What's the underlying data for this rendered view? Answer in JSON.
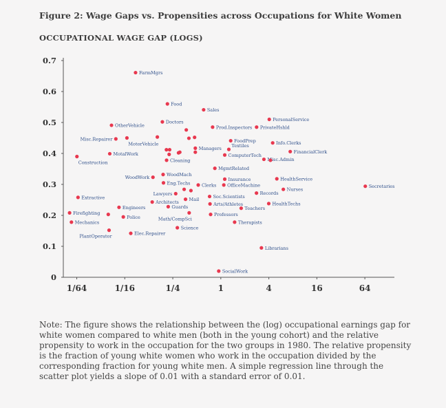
{
  "figure_title": "Figure 2: Wage Gaps vs. Propensities across Occupations for White Women",
  "note": "Note: The figure shows the relationship between the (log) occupational earnings gap for white women compared to white men (both in the young cohort) and the relative propensity to work in the occupation for the two groups in 1980. The relative propensity is the fraction of young white women who work in the occupation divided by the corresponding fraction for young white men. A simple regression line through the scatter plot yields a slope of 0.01 with a standard error of 0.01.",
  "colors": {
    "point": "#e8384f",
    "label": "#2f4f8a",
    "axis": "#555555",
    "background": "#f6f5f5"
  },
  "chart_data": {
    "type": "scatter",
    "title": "Figure 2: Wage Gaps vs. Propensities across Occupations for White Women",
    "ylabel": "OCCUPATIONAL WAGE GAP (LOGS)",
    "xlabel": "",
    "x_scale": "log2",
    "xlim": [
      0.0106,
      128
    ],
    "ylim": [
      0,
      0.7
    ],
    "x_ticks": [
      {
        "value": 0.015625,
        "label": "1/64"
      },
      {
        "value": 0.0625,
        "label": "1/16"
      },
      {
        "value": 0.25,
        "label": "1/4"
      },
      {
        "value": 1,
        "label": "1"
      },
      {
        "value": 4,
        "label": "4"
      },
      {
        "value": 16,
        "label": "16"
      },
      {
        "value": 64,
        "label": "64"
      }
    ],
    "y_ticks": [
      {
        "value": 0,
        "label": "0"
      },
      {
        "value": 0.1,
        "label": "0.1"
      },
      {
        "value": 0.2,
        "label": "0.2"
      },
      {
        "value": 0.3,
        "label": "0.3"
      },
      {
        "value": 0.4,
        "label": "0.4"
      },
      {
        "value": 0.5,
        "label": "0.5"
      },
      {
        "value": 0.6,
        "label": "0.6"
      },
      {
        "value": 0.7,
        "label": "0.7"
      }
    ],
    "grid": false,
    "points": [
      {
        "x": 0.0853,
        "y": 0.661,
        "label": "FarmMgrs",
        "anchor": "right"
      },
      {
        "x": 0.214,
        "y": 0.56,
        "label": "Food",
        "anchor": "right"
      },
      {
        "x": 0.609,
        "y": 0.541,
        "label": "Sales",
        "anchor": "right"
      },
      {
        "x": 4.05,
        "y": 0.51,
        "label": "PersonalService",
        "anchor": "right"
      },
      {
        "x": 0.0426,
        "y": 0.491,
        "label": "OtherVehicle",
        "anchor": "right"
      },
      {
        "x": 0.185,
        "y": 0.502,
        "label": "Doctors",
        "anchor": "right"
      },
      {
        "x": 0.789,
        "y": 0.485,
        "label": "Prod.Inspectors",
        "anchor": "right"
      },
      {
        "x": 2.81,
        "y": 0.485,
        "label": "PrivateHshld",
        "anchor": "right"
      },
      {
        "x": 0.369,
        "y": 0.476,
        "label": "",
        "anchor": "right"
      },
      {
        "x": 0.0483,
        "y": 0.447,
        "label": "Misc.Repairer",
        "anchor": "left"
      },
      {
        "x": 0.0665,
        "y": 0.45,
        "label": "MotorVehicle",
        "anchor": "below"
      },
      {
        "x": 0.16,
        "y": 0.453,
        "label": "",
        "anchor": "right"
      },
      {
        "x": 0.398,
        "y": 0.449,
        "label": "",
        "anchor": "right"
      },
      {
        "x": 0.469,
        "y": 0.452,
        "label": "",
        "anchor": "right"
      },
      {
        "x": 0.479,
        "y": 0.417,
        "label": "Managers",
        "anchor": "right"
      },
      {
        "x": 1.33,
        "y": 0.441,
        "label": "FoodPrep",
        "anchor": "right"
      },
      {
        "x": 4.47,
        "y": 0.434,
        "label": "Info.Clerks",
        "anchor": "right"
      },
      {
        "x": 0.0405,
        "y": 0.399,
        "label": "MotalWork",
        "anchor": "right"
      },
      {
        "x": 0.0157,
        "y": 0.39,
        "label": "Construction",
        "anchor": "below"
      },
      {
        "x": 0.208,
        "y": 0.412,
        "label": "",
        "anchor": "right"
      },
      {
        "x": 0.228,
        "y": 0.412,
        "label": "",
        "anchor": "right"
      },
      {
        "x": 0.225,
        "y": 0.397,
        "label": "",
        "anchor": "right"
      },
      {
        "x": 0.295,
        "y": 0.402,
        "label": "",
        "anchor": "right"
      },
      {
        "x": 0.306,
        "y": 0.404,
        "label": "",
        "anchor": "right"
      },
      {
        "x": 0.479,
        "y": 0.404,
        "label": "",
        "anchor": "right"
      },
      {
        "x": 1.26,
        "y": 0.413,
        "label": "Textiles",
        "anchor": "above"
      },
      {
        "x": 1.12,
        "y": 0.395,
        "label": "ComputerTech",
        "anchor": "right"
      },
      {
        "x": 7.42,
        "y": 0.406,
        "label": "FinancialClerk",
        "anchor": "right"
      },
      {
        "x": 3.47,
        "y": 0.381,
        "label": "Misc.Admin",
        "anchor": "right"
      },
      {
        "x": 4.19,
        "y": 0.378,
        "label": "",
        "anchor": "right"
      },
      {
        "x": 0.209,
        "y": 0.378,
        "label": "Cleaning",
        "anchor": "right"
      },
      {
        "x": 0.842,
        "y": 0.352,
        "label": "MgmtRelated",
        "anchor": "right"
      },
      {
        "x": 0.189,
        "y": 0.332,
        "label": "WoodMach",
        "anchor": "right"
      },
      {
        "x": 0.141,
        "y": 0.323,
        "label": "WoodWork",
        "anchor": "left"
      },
      {
        "x": 1.12,
        "y": 0.317,
        "label": "Insurance",
        "anchor": "right"
      },
      {
        "x": 5.04,
        "y": 0.318,
        "label": "HealthService",
        "anchor": "right"
      },
      {
        "x": 0.191,
        "y": 0.305,
        "label": "Eng.Techs",
        "anchor": "right"
      },
      {
        "x": 0.521,
        "y": 0.298,
        "label": "Clerks",
        "anchor": "right"
      },
      {
        "x": 1.09,
        "y": 0.298,
        "label": "OfficeMachine",
        "anchor": "right"
      },
      {
        "x": 64.8,
        "y": 0.294,
        "label": "Secretaries",
        "anchor": "right"
      },
      {
        "x": 6.08,
        "y": 0.284,
        "label": "Nurses",
        "anchor": "right"
      },
      {
        "x": 0.347,
        "y": 0.284,
        "label": "",
        "anchor": "right"
      },
      {
        "x": 0.422,
        "y": 0.28,
        "label": "",
        "anchor": "right"
      },
      {
        "x": 0.272,
        "y": 0.27,
        "label": "Lawyers",
        "anchor": "left"
      },
      {
        "x": 2.8,
        "y": 0.272,
        "label": "Records",
        "anchor": "right"
      },
      {
        "x": 0.0162,
        "y": 0.258,
        "label": "Extractive",
        "anchor": "right"
      },
      {
        "x": 0.723,
        "y": 0.261,
        "label": "Soc.Scientists",
        "anchor": "right"
      },
      {
        "x": 0.361,
        "y": 0.252,
        "label": "Mail",
        "anchor": "right"
      },
      {
        "x": 0.138,
        "y": 0.243,
        "label": "Architects",
        "anchor": "right"
      },
      {
        "x": 0.732,
        "y": 0.237,
        "label": "Arts/Athletes",
        "anchor": "right"
      },
      {
        "x": 3.99,
        "y": 0.238,
        "label": "HealthTechs",
        "anchor": "right"
      },
      {
        "x": 0.0529,
        "y": 0.226,
        "label": "Engineers",
        "anchor": "right"
      },
      {
        "x": 0.219,
        "y": 0.228,
        "label": "Guards",
        "anchor": "right"
      },
      {
        "x": 1.8,
        "y": 0.223,
        "label": "Teachers",
        "anchor": "right"
      },
      {
        "x": 0.0127,
        "y": 0.208,
        "label": "Firefighting",
        "anchor": "right"
      },
      {
        "x": 0.0388,
        "y": 0.203,
        "label": "",
        "anchor": "right"
      },
      {
        "x": 0.0599,
        "y": 0.195,
        "label": "Police",
        "anchor": "right"
      },
      {
        "x": 0.401,
        "y": 0.208,
        "label": "Math/CompSci",
        "anchor": "belowleft"
      },
      {
        "x": 0.745,
        "y": 0.203,
        "label": "Professors",
        "anchor": "right"
      },
      {
        "x": 0.0134,
        "y": 0.178,
        "label": "Mechanics",
        "anchor": "right"
      },
      {
        "x": 1.49,
        "y": 0.178,
        "label": "Therapists",
        "anchor": "right"
      },
      {
        "x": 0.285,
        "y": 0.16,
        "label": "Science",
        "anchor": "right"
      },
      {
        "x": 0.0397,
        "y": 0.152,
        "label": "PlantOperator",
        "anchor": "belowleft"
      },
      {
        "x": 0.0743,
        "y": 0.142,
        "label": "Elec.Repairer",
        "anchor": "right"
      },
      {
        "x": 3.23,
        "y": 0.095,
        "label": "Librarians",
        "anchor": "right"
      },
      {
        "x": 0.942,
        "y": 0.02,
        "label": "SocialWork",
        "anchor": "right"
      }
    ]
  }
}
